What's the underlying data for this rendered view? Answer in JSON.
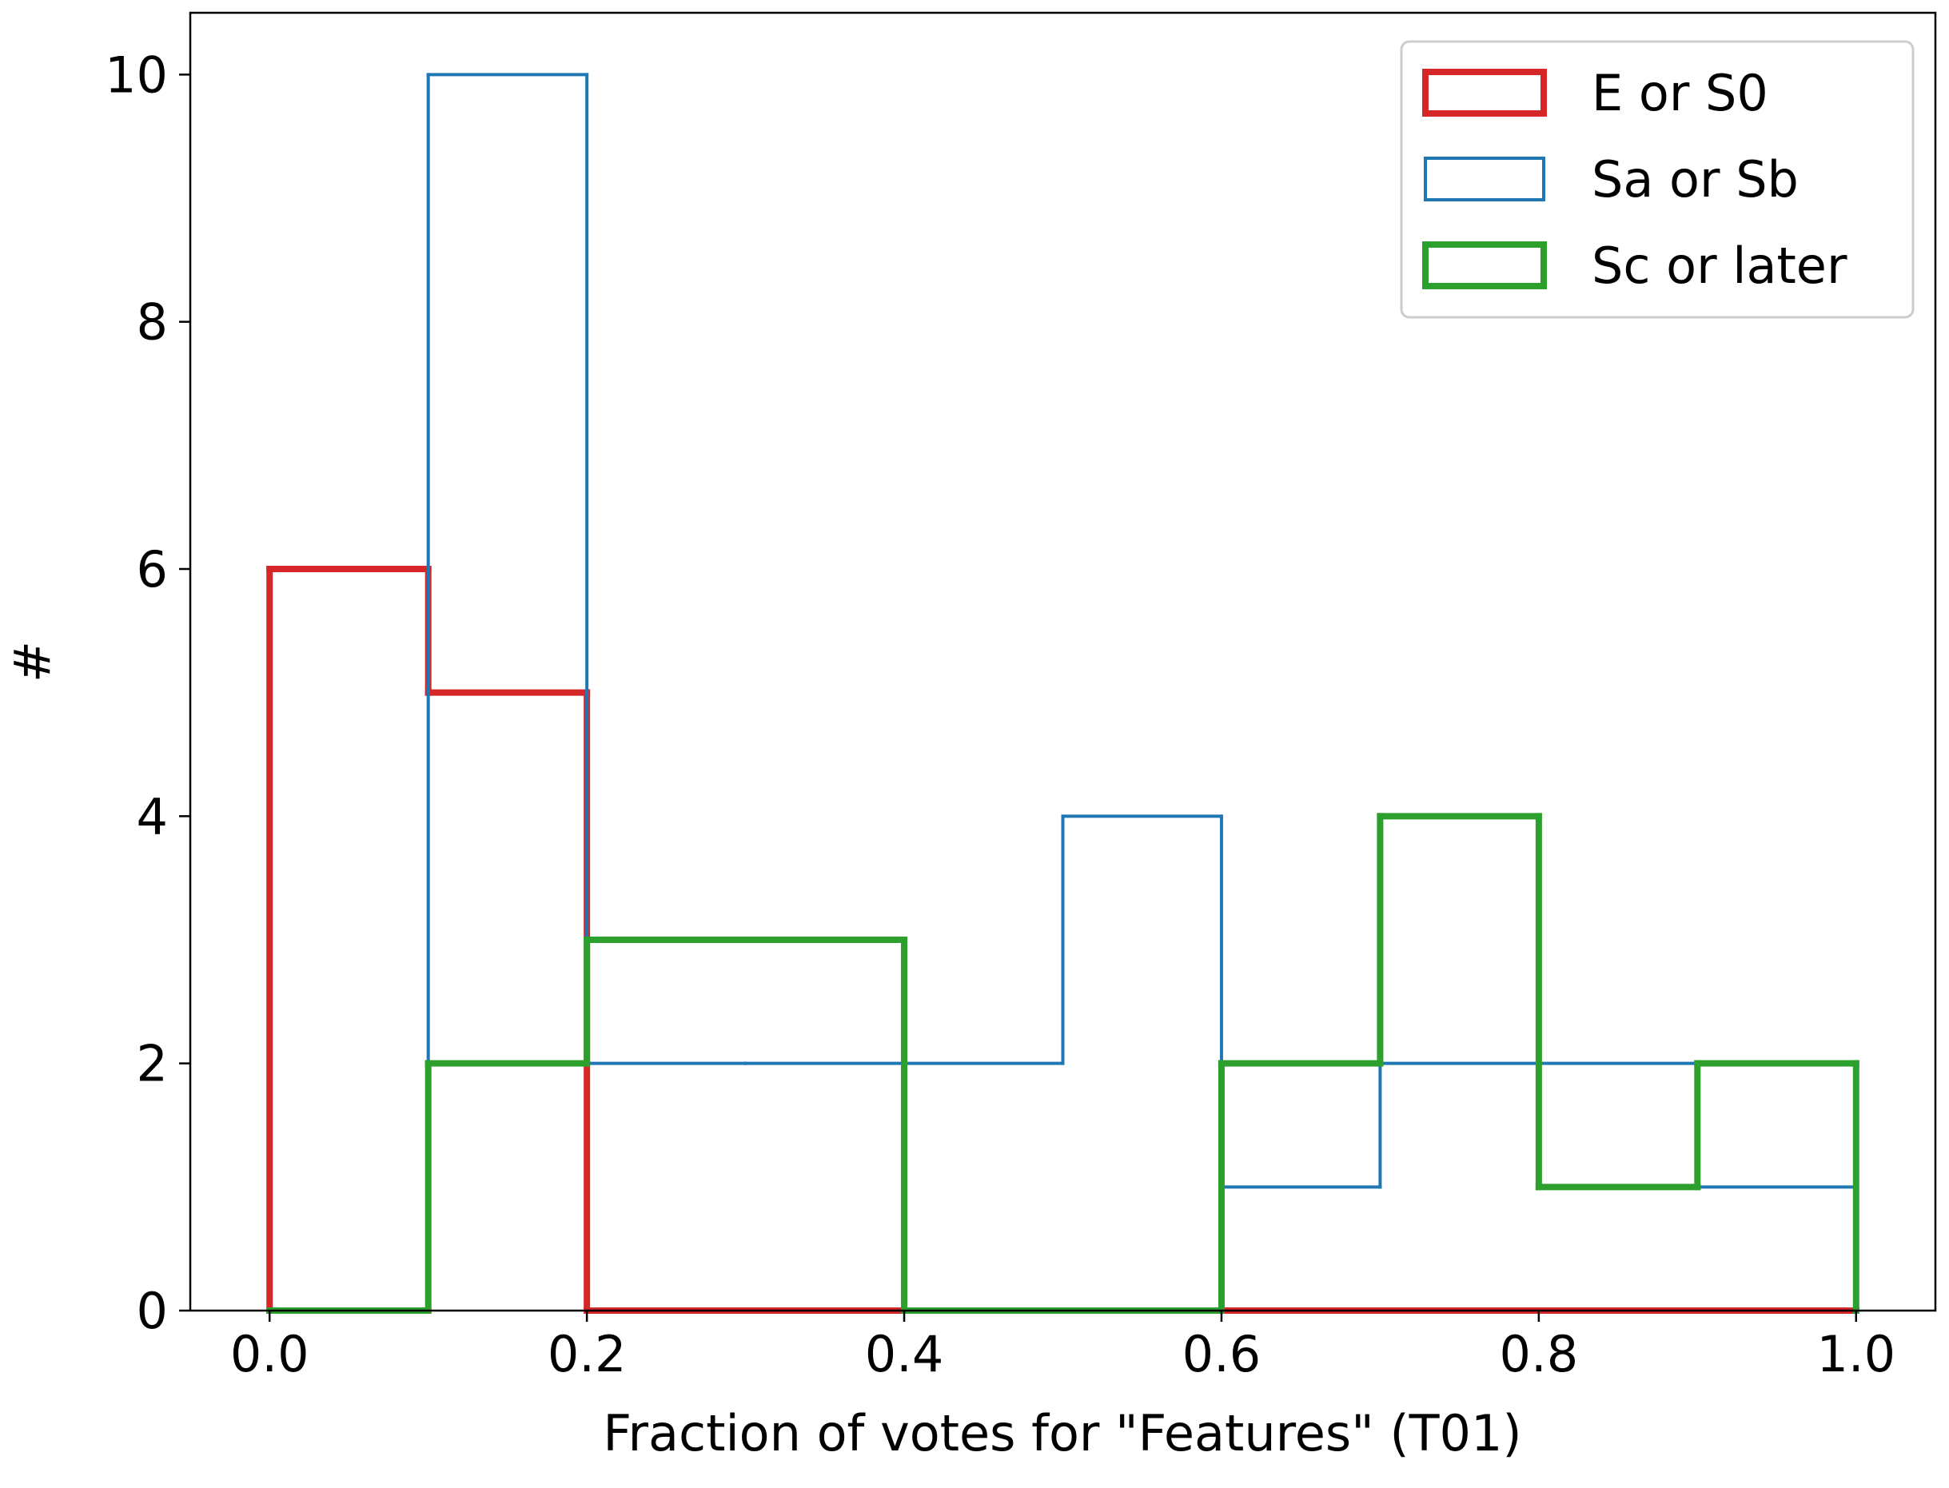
{
  "chart_data": {
    "type": "histogram",
    "x_label": "Fraction of votes for \"Features\" (T01)",
    "y_label": "#",
    "bins": [
      0.0,
      0.1,
      0.2,
      0.3,
      0.4,
      0.5,
      0.6,
      0.7,
      0.8,
      0.9,
      1.0
    ],
    "series": [
      {
        "name": "E or S0",
        "color": "#d62728",
        "values": [
          6,
          5,
          0,
          0,
          0,
          0,
          0,
          0,
          0,
          0
        ]
      },
      {
        "name": "Sa or Sb",
        "color": "#1f77b4",
        "values": [
          0,
          10,
          2,
          2,
          2,
          4,
          1,
          2,
          2,
          1
        ]
      },
      {
        "name": "Sc or later",
        "color": "#2ca02c",
        "values": [
          0,
          2,
          3,
          3,
          0,
          0,
          2,
          4,
          1,
          2
        ]
      }
    ],
    "xlim": [
      -0.05,
      1.05
    ],
    "ylim": [
      0,
      10.5
    ],
    "xticks": [
      {
        "value": 0.0,
        "label": "0.0"
      },
      {
        "value": 0.2,
        "label": "0.2"
      },
      {
        "value": 0.4,
        "label": "0.4"
      },
      {
        "value": 0.6,
        "label": "0.6"
      },
      {
        "value": 0.8,
        "label": "0.8"
      },
      {
        "value": 1.0,
        "label": "1.0"
      }
    ],
    "yticks": [
      0,
      2,
      4,
      6,
      8,
      10
    ],
    "legend": "upper right"
  }
}
